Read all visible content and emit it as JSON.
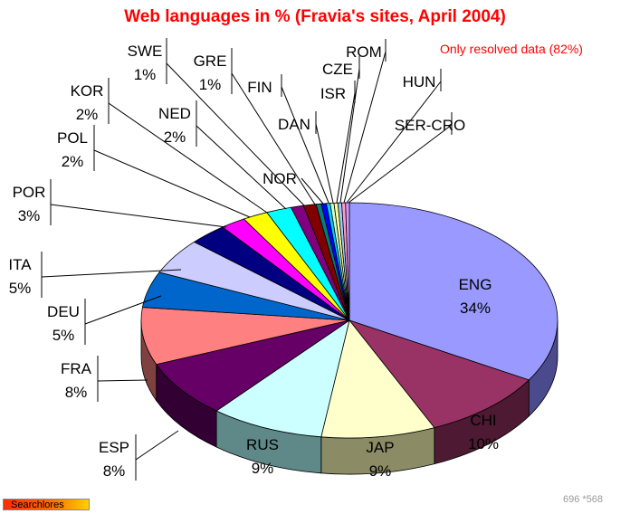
{
  "chart_data": {
    "type": "pie",
    "title": "Web languages in % (Fravia's sites, April 2004)",
    "subtitle": "Only resolved data (82%)",
    "slices": [
      {
        "name": "ENG",
        "value": 34,
        "label": "34%",
        "color": "#9999ff",
        "side": "#4a4a8c"
      },
      {
        "name": "CHI",
        "value": 10,
        "label": "10%",
        "color": "#993366",
        "side": "#4e1a33"
      },
      {
        "name": "JAP",
        "value": 9,
        "label": "9%",
        "color": "#ffffcc",
        "side": "#8b8b66"
      },
      {
        "name": "RUS",
        "value": 9,
        "label": "9%",
        "color": "#ccffff",
        "side": "#5f8888"
      },
      {
        "name": "ESP",
        "value": 8,
        "label": "8%",
        "color": "#660066",
        "side": "#330033"
      },
      {
        "name": "FRA",
        "value": 8,
        "label": "8%",
        "color": "#ff8080",
        "side": "#7f4040"
      },
      {
        "name": "DEU",
        "value": 5,
        "label": "5%",
        "color": "#0066cc",
        "side": "#003366"
      },
      {
        "name": "ITA",
        "value": 5,
        "label": "5%",
        "color": "#ccccff",
        "side": "#66667f"
      },
      {
        "name": "POR",
        "value": 3,
        "label": "3%",
        "color": "#000080",
        "side": "#000040"
      },
      {
        "name": "POL",
        "value": 2,
        "label": "2%",
        "color": "#ff00ff",
        "side": "#800080"
      },
      {
        "name": "KOR",
        "value": 2,
        "label": "2%",
        "color": "#ffff00",
        "side": "#808000"
      },
      {
        "name": "NED",
        "value": 2,
        "label": "2%",
        "color": "#00ffff",
        "side": "#008080"
      },
      {
        "name": "SWE",
        "value": 1,
        "label": "1%",
        "color": "#800080",
        "side": "#400040"
      },
      {
        "name": "GRE",
        "value": 1,
        "label": "1%",
        "color": "#800000",
        "side": "#400000"
      },
      {
        "name": "NOR",
        "value": 0.4,
        "label": "",
        "color": "#008080",
        "side": "#004040"
      },
      {
        "name": "FIN",
        "value": 0.4,
        "label": "",
        "color": "#0000ff",
        "side": "#000080"
      },
      {
        "name": "DAN",
        "value": 0.3,
        "label": "",
        "color": "#00ccff",
        "side": "#006680"
      },
      {
        "name": "ISR",
        "value": 0.3,
        "label": "",
        "color": "#ccffcc",
        "side": "#668066"
      },
      {
        "name": "CZE",
        "value": 0.3,
        "label": "",
        "color": "#ffff99",
        "side": "#80804c"
      },
      {
        "name": "ROM",
        "value": 0.3,
        "label": "",
        "color": "#99ccff",
        "side": "#4c6680"
      },
      {
        "name": "HUN",
        "value": 0.3,
        "label": "",
        "color": "#ff99cc",
        "side": "#804c66"
      },
      {
        "name": "SER-CRO",
        "value": 0.3,
        "label": "",
        "color": "#cc99ff",
        "side": "#664c80"
      }
    ]
  },
  "footer": {
    "brand": "Searchlores",
    "dims": "696 *568"
  }
}
